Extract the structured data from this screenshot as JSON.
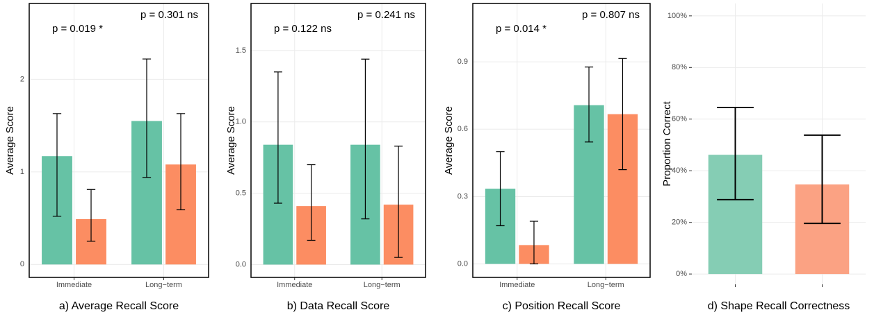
{
  "chart_data": [
    {
      "type": "bar",
      "caption": "a) Average Recall Score",
      "y_label": "Average Score",
      "categories": [
        "Immediate",
        "Long−term"
      ],
      "series": [
        {
          "color": "#66c2a5",
          "values": [
            1.17,
            1.55
          ],
          "lower": [
            0.52,
            0.94
          ],
          "upper": [
            1.63,
            2.22
          ]
        },
        {
          "color": "#fc8d62",
          "values": [
            0.49,
            1.08
          ],
          "lower": [
            0.25,
            0.59
          ],
          "upper": [
            0.81,
            1.63
          ]
        }
      ],
      "annotations": [
        "p = 0.019 *",
        "p = 0.301 ns"
      ],
      "ylim": [
        -0.14,
        2.82
      ],
      "yticks": [
        0,
        1,
        2
      ],
      "grid": true,
      "frame": true
    },
    {
      "type": "bar",
      "caption": "b) Data Recall Score",
      "y_label": "Average Score",
      "categories": [
        "Immediate",
        "Long−term"
      ],
      "series": [
        {
          "color": "#66c2a5",
          "values": [
            0.84,
            0.84
          ],
          "lower": [
            0.43,
            0.32
          ],
          "upper": [
            1.35,
            1.44
          ]
        },
        {
          "color": "#fc8d62",
          "values": [
            0.41,
            0.42
          ],
          "lower": [
            0.17,
            0.05
          ],
          "upper": [
            0.7,
            0.83
          ]
        }
      ],
      "annotations": [
        "p = 0.122 ns",
        "p = 0.241 ns"
      ],
      "ylim": [
        -0.09,
        1.83
      ],
      "yticks": [
        {
          "value": 0,
          "label": "0.0"
        },
        {
          "value": 0.5,
          "label": "0.5"
        },
        {
          "value": 1,
          "label": "1.0"
        },
        {
          "value": 1.5,
          "label": "1.5"
        }
      ],
      "grid": true,
      "frame": true
    },
    {
      "type": "bar",
      "caption": "c) Position Recall Score",
      "y_label": "Average Score",
      "categories": [
        "Immediate",
        "Long−term"
      ],
      "series": [
        {
          "color": "#66c2a5",
          "values": [
            0.335,
            0.707
          ],
          "lower": [
            0.17,
            0.543
          ],
          "upper": [
            0.5,
            0.877
          ]
        },
        {
          "color": "#fc8d62",
          "values": [
            0.084,
            0.667
          ],
          "lower": [
            0.0,
            0.42
          ],
          "upper": [
            0.19,
            0.915
          ]
        }
      ],
      "annotations": [
        "p = 0.014 *",
        "p = 0.807 ns"
      ],
      "ylim": [
        -0.06,
        1.16
      ],
      "yticks": [
        {
          "value": 0,
          "label": "0.0"
        },
        {
          "value": 0.3,
          "label": "0.3"
        },
        {
          "value": 0.6,
          "label": "0.6"
        },
        {
          "value": 0.9,
          "label": "0.9"
        }
      ],
      "grid": true,
      "frame": true
    },
    {
      "type": "bar",
      "caption": "d) Shape Recall Correctness",
      "y_label": "Proportion Correct",
      "categories": [
        null,
        null
      ],
      "series": [
        {
          "colors": [
            "#85cdb4",
            "#fba283"
          ],
          "values": [
            46.2,
            34.7
          ],
          "lower": [
            28.8,
            19.6
          ],
          "upper": [
            64.5,
            53.8
          ]
        }
      ],
      "ylim": [
        -4,
        104.8
      ],
      "yticks": [
        {
          "value": 0,
          "label": "0%"
        },
        {
          "value": 20,
          "label": "20%"
        },
        {
          "value": 40,
          "label": "40%"
        },
        {
          "value": 60,
          "label": "60%"
        },
        {
          "value": 80,
          "label": "80%"
        },
        {
          "value": 100,
          "label": "100%"
        }
      ],
      "grid": true,
      "frame": false
    }
  ]
}
